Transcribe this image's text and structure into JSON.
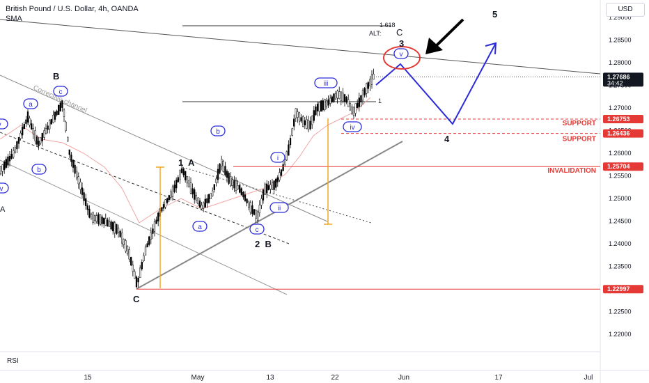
{
  "header": {
    "title": "British Pound / U.S. Dollar, 4h, OANDA",
    "indicator": "SMA",
    "currency": "USD",
    "sub_pane": "RSI"
  },
  "chart_data": {
    "type": "candlestick",
    "y_axis": {
      "ticks": [
        "1.29000",
        "1.28500",
        "1.28000",
        "1.27500",
        "1.27000",
        "1.26500",
        "1.26000",
        "1.25500",
        "1.25000",
        "1.24500",
        "1.24000",
        "1.23500",
        "1.23000",
        "1.22500",
        "1.22000"
      ],
      "ylim": [
        1.2135,
        1.2915
      ]
    },
    "x_axis": {
      "ticks": [
        "15",
        "May",
        "13",
        "22",
        "Jun",
        "17",
        "Jul"
      ]
    },
    "price_labels": [
      {
        "value": 1.27686,
        "text": "1.27686",
        "sub": "34:42",
        "style": "dark"
      },
      {
        "value": 1.26753,
        "text": "1.26753",
        "style": "red"
      },
      {
        "value": 1.26436,
        "text": "1.26436",
        "style": "red"
      },
      {
        "value": 1.25704,
        "text": "1.25704",
        "style": "red"
      },
      {
        "value": 1.22997,
        "text": "1.22997",
        "style": "red"
      }
    ],
    "levels": [
      {
        "value": 1.26753,
        "label": "SUPPORT"
      },
      {
        "value": 1.26436,
        "label": "SUPPORT"
      },
      {
        "value": 1.25704,
        "label": "INVALIDATION"
      }
    ],
    "fib_labels": {
      "ext": "1.618",
      "alt": "ALT:",
      "one": "1"
    },
    "channel_label": "Corrective channel",
    "wave_labels": {
      "B_top": "B",
      "C_bottom": "C",
      "one_A": "1  A",
      "two_B": "2  B",
      "three": "3",
      "alt_C": "C",
      "four": "4",
      "five": "5",
      "a_left": "a",
      "b_left": "b",
      "c_left": "c",
      "a_mid": "a",
      "b_mid": "b",
      "c_mid": "c",
      "i": "i",
      "ii": "ii",
      "iii": "iii",
      "iv": "iv",
      "v": "v",
      "left_A": "A",
      "left_v": "v",
      "left_iv": "iv"
    }
  }
}
